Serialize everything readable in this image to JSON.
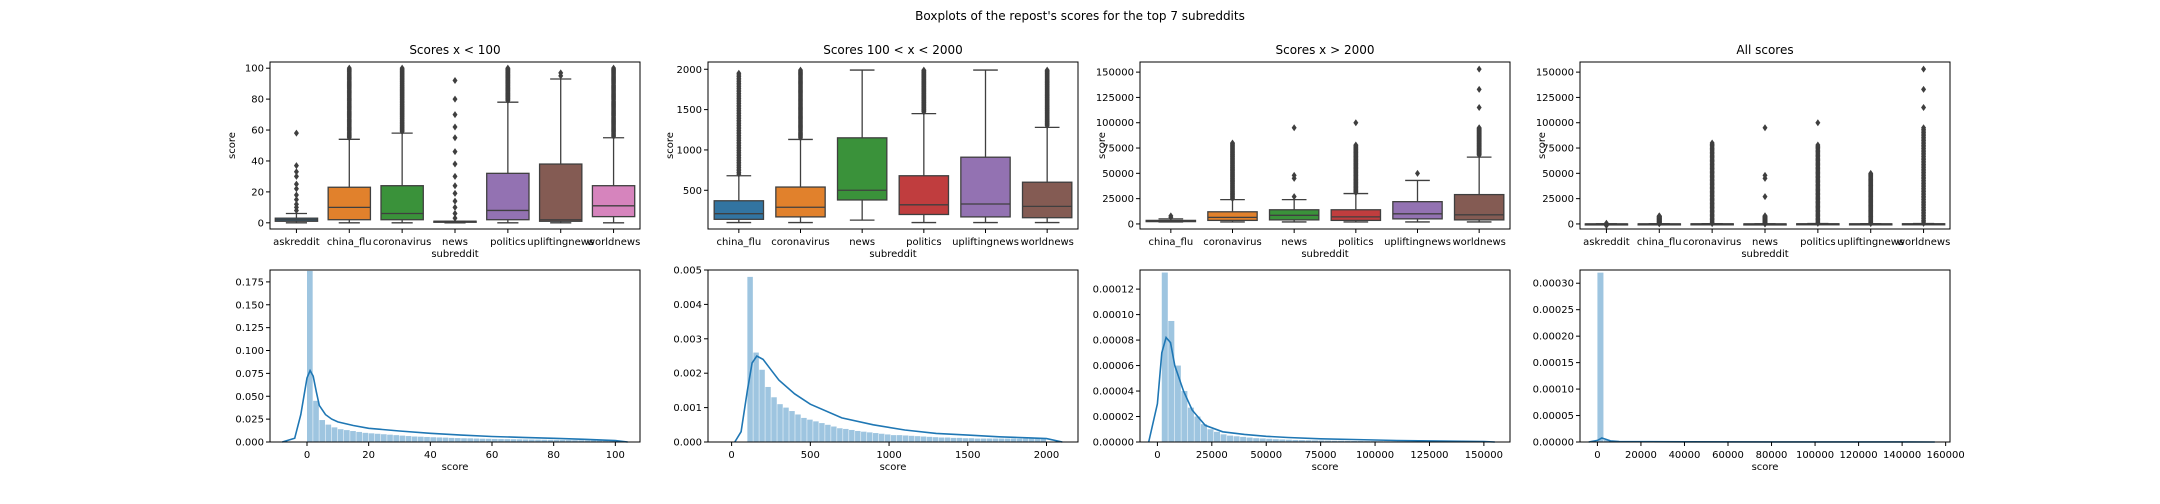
{
  "figure_title": "Boxplots of the repost's scores for the top 7 subreddits",
  "colors": {
    "askreddit": "#3274a1",
    "china_flu": "#e1812c",
    "coronavirus": "#3a923a",
    "news": "#c03d3e",
    "politics": "#9372b2",
    "upliftingnews": "#845b53",
    "worldnews": "#d684bd",
    "hist_fill": "#9ec5e0",
    "kde_line": "#1f77b4",
    "box_line": "#3f3f3f"
  },
  "chart_data": [
    {
      "type": "box",
      "title": "Scores x < 100",
      "xlabel": "subreddit",
      "ylabel": "score",
      "ylim": [
        -4,
        104
      ],
      "yticks": [
        0,
        20,
        40,
        60,
        80,
        100
      ],
      "categories": [
        "askreddit",
        "china_flu",
        "coronavirus",
        "news",
        "politics",
        "upliftingnews",
        "worldnews"
      ],
      "colors": [
        "#3274a1",
        "#e1812c",
        "#3a923a",
        "#c03d3e",
        "#9372b2",
        "#845b53",
        "#d684bd"
      ],
      "boxes": [
        {
          "whislo": 0,
          "q1": 1,
          "med": 2,
          "q3": 3,
          "whishi": 6,
          "fliers": [
            8,
            10,
            12,
            15,
            18,
            22,
            25,
            30,
            33,
            37,
            58
          ]
        },
        {
          "whislo": 0,
          "q1": 2,
          "med": 10,
          "q3": 23,
          "whishi": 54,
          "fliers_range": [
            55,
            100
          ]
        },
        {
          "whislo": 0,
          "q1": 2,
          "med": 6,
          "q3": 24,
          "whishi": 58,
          "fliers_range": [
            59,
            100
          ]
        },
        {
          "whislo": 0,
          "q1": 1,
          "med": 1,
          "q3": 1,
          "whishi": 1,
          "fliers": [
            3,
            6,
            10,
            14,
            19,
            24,
            30,
            38,
            46,
            55,
            62,
            70,
            80,
            92
          ]
        },
        {
          "whislo": 0,
          "q1": 2,
          "med": 8,
          "q3": 32,
          "whishi": 78,
          "fliers_range": [
            79,
            100
          ]
        },
        {
          "whislo": 0,
          "q1": 1,
          "med": 2,
          "q3": 38,
          "whishi": 93,
          "fliers": [
            95,
            97
          ]
        },
        {
          "whislo": 0,
          "q1": 4,
          "med": 11,
          "q3": 24,
          "whishi": 55,
          "fliers_range": [
            56,
            100
          ]
        }
      ]
    },
    {
      "type": "box",
      "title": "Scores 100 < x < 2000",
      "xlabel": "subreddit",
      "ylabel": "score",
      "ylim": [
        20,
        2090
      ],
      "yticks": [
        500,
        1000,
        1500,
        2000
      ],
      "categories": [
        "china_flu",
        "coronavirus",
        "news",
        "politics",
        "upliftingnews",
        "worldnews"
      ],
      "colors": [
        "#3274a1",
        "#e1812c",
        "#3a923a",
        "#c03d3e",
        "#9372b2",
        "#845b53"
      ],
      "boxes": [
        {
          "whislo": 100,
          "q1": 140,
          "med": 210,
          "q3": 370,
          "whishi": 680,
          "fliers_range": [
            700,
            1950
          ]
        },
        {
          "whislo": 100,
          "q1": 170,
          "med": 290,
          "q3": 540,
          "whishi": 1130,
          "fliers_range": [
            1150,
            1990
          ]
        },
        {
          "whislo": 130,
          "q1": 380,
          "med": 500,
          "q3": 1150,
          "whishi": 1990,
          "fliers": []
        },
        {
          "whislo": 100,
          "q1": 200,
          "med": 320,
          "q3": 680,
          "whishi": 1450,
          "fliers_range": [
            1470,
            1990
          ]
        },
        {
          "whislo": 100,
          "q1": 170,
          "med": 330,
          "q3": 910,
          "whishi": 1990,
          "fliers": []
        },
        {
          "whislo": 100,
          "q1": 160,
          "med": 300,
          "q3": 600,
          "whishi": 1280,
          "fliers_range": [
            1300,
            1990
          ]
        }
      ]
    },
    {
      "type": "box",
      "title": "Scores x > 2000",
      "xlabel": "subreddit",
      "ylabel": "score",
      "ylim": [
        -5000,
        160000
      ],
      "yticks": [
        0,
        25000,
        50000,
        75000,
        100000,
        125000,
        150000
      ],
      "categories": [
        "china_flu",
        "coronavirus",
        "news",
        "politics",
        "upliftingnews",
        "worldnews"
      ],
      "colors": [
        "#3274a1",
        "#e1812c",
        "#3a923a",
        "#c03d3e",
        "#9372b2",
        "#845b53"
      ],
      "boxes": [
        {
          "whislo": 2000,
          "q1": 2300,
          "med": 2800,
          "q3": 3500,
          "whishi": 5000,
          "fliers": [
            6500,
            8000
          ]
        },
        {
          "whislo": 2000,
          "q1": 3500,
          "med": 6500,
          "q3": 12000,
          "whishi": 24000,
          "fliers_range": [
            25000,
            80000
          ]
        },
        {
          "whislo": 2000,
          "q1": 4000,
          "med": 8500,
          "q3": 14000,
          "whishi": 24000,
          "fliers": [
            27000,
            45000,
            48000,
            95000
          ]
        },
        {
          "whislo": 2000,
          "q1": 3500,
          "med": 7000,
          "q3": 14000,
          "whishi": 30000,
          "fliers_range": [
            31000,
            78000
          ],
          "extra_fliers": [
            100000
          ]
        },
        {
          "whislo": 2000,
          "q1": 5000,
          "med": 10000,
          "q3": 22000,
          "whishi": 43000,
          "fliers": [
            50000
          ]
        },
        {
          "whislo": 2000,
          "q1": 4000,
          "med": 9000,
          "q3": 29000,
          "whishi": 66000,
          "fliers_range": [
            68000,
            95000
          ],
          "extra_fliers": [
            115000,
            133000,
            153000
          ]
        }
      ]
    },
    {
      "type": "box",
      "title": "All scores",
      "xlabel": "subreddit",
      "ylabel": "score",
      "ylim": [
        -5000,
        160000
      ],
      "yticks": [
        0,
        25000,
        50000,
        75000,
        100000,
        125000,
        150000
      ],
      "categories": [
        "askreddit",
        "china_flu",
        "coronavirus",
        "news",
        "politics",
        "upliftingnews",
        "worldnews"
      ],
      "colors": [
        "#3274a1",
        "#e1812c",
        "#3a923a",
        "#c03d3e",
        "#9372b2",
        "#845b53",
        "#d684bd"
      ],
      "boxes": [
        {
          "whislo": 0,
          "q1": 1,
          "med": 2,
          "q3": 4,
          "whishi": 8,
          "fliers": [
            -1500,
            300,
            700
          ]
        },
        {
          "whislo": 0,
          "q1": 3,
          "med": 15,
          "q3": 50,
          "whishi": 120,
          "fliers_range": [
            200,
            8000
          ]
        },
        {
          "whislo": 0,
          "q1": 3,
          "med": 20,
          "q3": 100,
          "whishi": 250,
          "fliers_range": [
            300,
            80000
          ]
        },
        {
          "whislo": 0,
          "q1": 1,
          "med": 1,
          "q3": 3,
          "whishi": 6,
          "fliers_range": [
            10,
            8000
          ],
          "extra_fliers": [
            27000,
            45000,
            48000,
            95000
          ]
        },
        {
          "whislo": 0,
          "q1": 2,
          "med": 15,
          "q3": 150,
          "whishi": 400,
          "fliers_range": [
            500,
            78000
          ],
          "extra_fliers": [
            100000
          ]
        },
        {
          "whislo": 0,
          "q1": 1,
          "med": 5,
          "q3": 80,
          "whishi": 200,
          "fliers_range": [
            300,
            50000
          ]
        },
        {
          "whislo": 0,
          "q1": 4,
          "med": 20,
          "q3": 150,
          "whishi": 400,
          "fliers_range": [
            500,
            95000
          ],
          "extra_fliers": [
            115000,
            133000,
            153000
          ]
        }
      ]
    },
    {
      "type": "histogram",
      "xlabel": "score",
      "ylabel": "",
      "xlim": [
        -12,
        108
      ],
      "ylim": [
        0,
        0.188
      ],
      "xticks": [
        0,
        20,
        40,
        60,
        80,
        100
      ],
      "yticks": [
        0.0,
        0.025,
        0.05,
        0.075,
        0.1,
        0.125,
        0.15,
        0.175
      ],
      "ytick_labels": [
        "0.000",
        "0.025",
        "0.050",
        "0.075",
        "0.100",
        "0.125",
        "0.150",
        "0.175"
      ],
      "bins": {
        "start": 0,
        "width": 2,
        "heights": [
          0.187,
          0.045,
          0.024,
          0.019,
          0.016,
          0.014,
          0.013,
          0.012,
          0.011,
          0.01,
          0.0095,
          0.009,
          0.0085,
          0.008,
          0.0075,
          0.007,
          0.0065,
          0.006,
          0.0058,
          0.0055,
          0.0052,
          0.005,
          0.0048,
          0.0045,
          0.0043,
          0.0041,
          0.004,
          0.0038,
          0.0036,
          0.0035,
          0.0033,
          0.0032,
          0.0031,
          0.003,
          0.0029,
          0.0028,
          0.0027,
          0.0026,
          0.0025,
          0.0024,
          0.0023,
          0.0022,
          0.0021,
          0.002,
          0.0019,
          0.0018,
          0.0017,
          0.0016,
          0.0015,
          0.0015
        ]
      },
      "kde": {
        "x": [
          -8,
          -4,
          -2,
          0,
          1,
          2,
          3,
          4,
          6,
          8,
          10,
          15,
          20,
          30,
          40,
          50,
          60,
          70,
          80,
          90,
          100,
          104
        ],
        "y": [
          0,
          0.004,
          0.03,
          0.07,
          0.078,
          0.072,
          0.055,
          0.04,
          0.03,
          0.025,
          0.022,
          0.018,
          0.015,
          0.012,
          0.0095,
          0.0075,
          0.006,
          0.005,
          0.004,
          0.003,
          0.0015,
          0
        ]
      }
    },
    {
      "type": "histogram",
      "xlabel": "score",
      "ylabel": "",
      "xlim": [
        -150,
        2200
      ],
      "ylim": [
        0,
        0.005
      ],
      "xticks": [
        0,
        500,
        1000,
        1500,
        2000
      ],
      "yticks": [
        0.0,
        0.001,
        0.002,
        0.003,
        0.004,
        0.005
      ],
      "ytick_labels": [
        "0.000",
        "0.001",
        "0.002",
        "0.003",
        "0.004",
        "0.005"
      ],
      "bins": {
        "start": 100,
        "width": 38,
        "heights": [
          0.0048,
          0.0026,
          0.0021,
          0.0016,
          0.0013,
          0.0011,
          0.001,
          0.0009,
          0.0008,
          0.0007,
          0.00065,
          0.0006,
          0.00055,
          0.0005,
          0.00045,
          0.0004,
          0.00038,
          0.00035,
          0.00032,
          0.0003,
          0.00028,
          0.00026,
          0.00024,
          0.00022,
          0.0002,
          0.0002,
          0.00019,
          0.00018,
          0.00017,
          0.00016,
          0.00015,
          0.00014,
          0.00013,
          0.00013,
          0.00012,
          0.00012,
          0.00011,
          0.00011,
          0.0001,
          0.0001,
          0.0001,
          0.0001,
          0.0001,
          0.0001,
          0.0001,
          0.0001,
          0.0001,
          0.0001,
          0.0001,
          0.0001
        ]
      },
      "kde": {
        "x": [
          20,
          60,
          100,
          130,
          160,
          200,
          250,
          300,
          400,
          500,
          700,
          900,
          1100,
          1300,
          1500,
          1700,
          1900,
          2000,
          2100
        ],
        "y": [
          0,
          0.0003,
          0.0015,
          0.0023,
          0.0025,
          0.0024,
          0.0021,
          0.0018,
          0.0014,
          0.0011,
          0.0007,
          0.0005,
          0.00035,
          0.00025,
          0.0002,
          0.00015,
          0.00012,
          0.0001,
          0
        ]
      }
    },
    {
      "type": "histogram",
      "xlabel": "score",
      "ylabel": "",
      "xlim": [
        -8000,
        162000
      ],
      "ylim": [
        0,
        0.000135
      ],
      "xticks": [
        0,
        25000,
        50000,
        75000,
        100000,
        125000,
        150000
      ],
      "yticks": [
        0,
        2e-05,
        4e-05,
        6e-05,
        8e-05,
        0.0001,
        0.00012
      ],
      "ytick_labels": [
        "0.00000",
        "0.00002",
        "0.00004",
        "0.00006",
        "0.00008",
        "0.00010",
        "0.00012"
      ],
      "bins": {
        "start": 2000,
        "width": 3000,
        "heights": [
          0.000133,
          9.5e-05,
          6e-05,
          4e-05,
          2.7e-05,
          2e-05,
          1.4e-05,
          1e-05,
          8e-06,
          6e-06,
          5e-06,
          4.5e-06,
          4e-06,
          3.5e-06,
          3e-06,
          2.8e-06,
          2.5e-06,
          2.2e-06,
          2e-06,
          1.8e-06,
          1.6e-06,
          1.5e-06,
          1.4e-06,
          1.3e-06,
          1.2e-06,
          1.1e-06,
          1e-06,
          1e-06,
          9e-07,
          8e-07,
          8e-07,
          7e-07,
          7e-07,
          6e-07,
          6e-07,
          5e-07,
          5e-07,
          5e-07,
          4e-07,
          4e-07,
          4e-07,
          3e-07,
          3e-07,
          3e-07,
          3e-07,
          3e-07,
          2e-07,
          2e-07,
          2e-07,
          2e-07
        ]
      },
      "kde": {
        "x": [
          -4000,
          0,
          2000,
          4000,
          6000,
          8000,
          12000,
          16000,
          22000,
          30000,
          40000,
          50000,
          60000,
          75000,
          90000,
          110000,
          130000,
          150000,
          155000
        ],
        "y": [
          0,
          3e-05,
          7e-05,
          8.2e-05,
          7.8e-05,
          6e-05,
          4e-05,
          2.5e-05,
          1.3e-05,
          8e-06,
          6e-06,
          4.5e-06,
          3.5e-06,
          2.5e-06,
          2e-06,
          1.2e-06,
          8e-07,
          4e-07,
          0
        ]
      }
    },
    {
      "type": "histogram",
      "xlabel": "score",
      "ylabel": "",
      "xlim": [
        -8000,
        162000
      ],
      "ylim": [
        0,
        0.000325
      ],
      "xticks": [
        0,
        20000,
        40000,
        60000,
        80000,
        100000,
        120000,
        140000,
        160000
      ],
      "yticks": [
        0,
        5e-05,
        0.0001,
        0.00015,
        0.0002,
        0.00025,
        0.0003
      ],
      "ytick_labels": [
        "0.00000",
        "0.00005",
        "0.00010",
        "0.00015",
        "0.00020",
        "0.00025",
        "0.00030"
      ],
      "bins": {
        "start": 0,
        "width": 3000,
        "heights": [
          0.00032,
          4e-06,
          2e-06,
          1.5e-06,
          1e-06,
          8e-07,
          6e-07,
          5e-07,
          4e-07,
          3e-07,
          3e-07,
          2e-07,
          2e-07,
          2e-07,
          2e-07,
          1e-07,
          1e-07,
          1e-07,
          1e-07,
          1e-07
        ]
      },
      "kde": {
        "x": [
          -4000,
          0,
          2000,
          4000,
          6000,
          10000,
          20000,
          40000,
          80000,
          120000,
          155000
        ],
        "y": [
          0,
          3e-06,
          7.5e-06,
          5e-06,
          2e-06,
          1e-06,
          6e-07,
          4e-07,
          2e-07,
          1e-07,
          0
        ]
      }
    }
  ]
}
